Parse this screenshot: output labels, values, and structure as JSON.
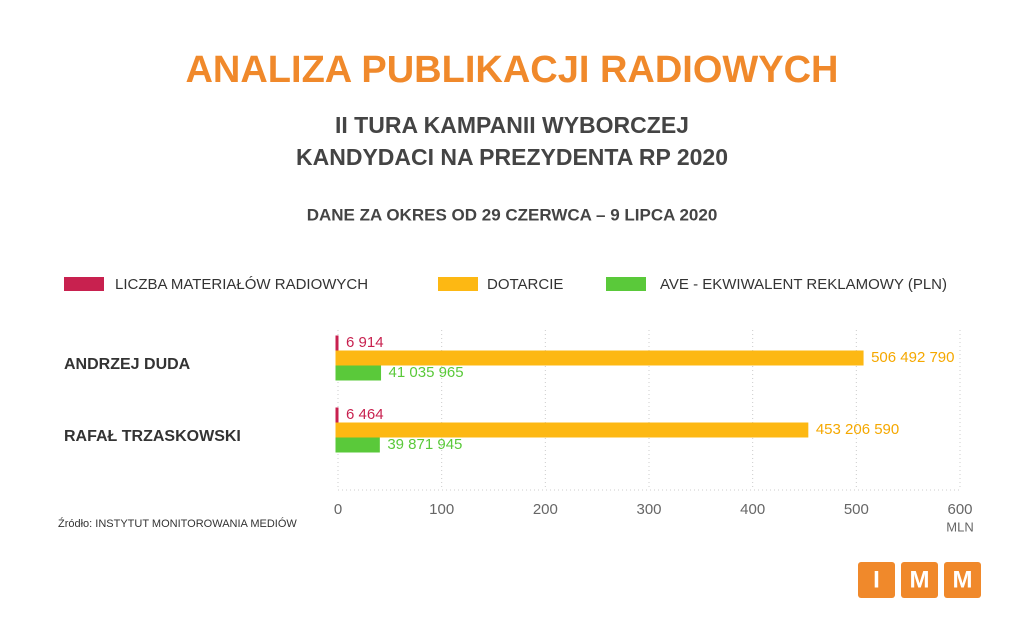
{
  "chart_data": {
    "type": "bar",
    "orientation": "horizontal",
    "title": "ANALIZA PUBLIKACJI RADIOWYCH",
    "subtitle": [
      "II TURA KAMPANII WYBORCZEJ",
      "KANDYDACI NA PREZYDENTA RP 2020"
    ],
    "period": "DANE ZA OKRES OD 29 CZERWCA – 9 LIPCA 2020",
    "categories": [
      "ANDRZEJ DUDA",
      "RAFAŁ TRZASKOWSKI"
    ],
    "series": [
      {
        "name": "LICZBA MATERIAŁÓW RADIOWYCH",
        "color": "#c8214f",
        "values": [
          0.006914,
          0.006464
        ],
        "value_labels": [
          "6 914",
          "6 464"
        ]
      },
      {
        "name": "DOTARCIE",
        "color": "#fdb813",
        "values": [
          506.49279,
          453.20659
        ],
        "value_labels": [
          "506 492 790",
          "453 206 590"
        ]
      },
      {
        "name": "AVE - EKWIWALENT REKLAMOWY (PLN)",
        "color": "#5ac93a",
        "values": [
          41.035965,
          39.871945
        ],
        "value_labels": [
          "41 035 965",
          "39 871 945"
        ]
      }
    ],
    "xlim": [
      0,
      600
    ],
    "xticks": [
      0,
      100,
      200,
      300,
      400,
      500,
      600
    ],
    "x_unit": "MLN",
    "grid": true,
    "legend": "top",
    "source": "Źródło: INSTYTUT MONITOROWANIA MEDIÓW"
  },
  "logo": [
    "I",
    "M",
    "M"
  ]
}
